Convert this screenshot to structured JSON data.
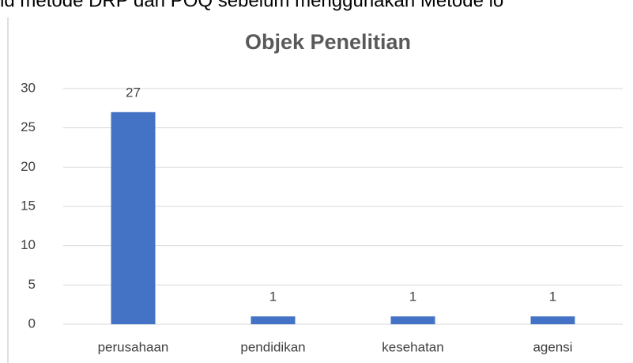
{
  "page_text": "nd metode DRP dan POQ sebelum menggunakan Metode lo",
  "chart_data": {
    "type": "bar",
    "title": "Objek Penelitian",
    "categories": [
      "perusahaan",
      "pendidikan",
      "kesehatan",
      "agensi"
    ],
    "values": [
      27,
      1,
      1,
      1
    ],
    "color": "#4472c4",
    "ylim": [
      0,
      30
    ],
    "yticks": [
      0,
      5,
      10,
      15,
      20,
      25,
      30
    ],
    "grid": true,
    "data_labels": true
  }
}
